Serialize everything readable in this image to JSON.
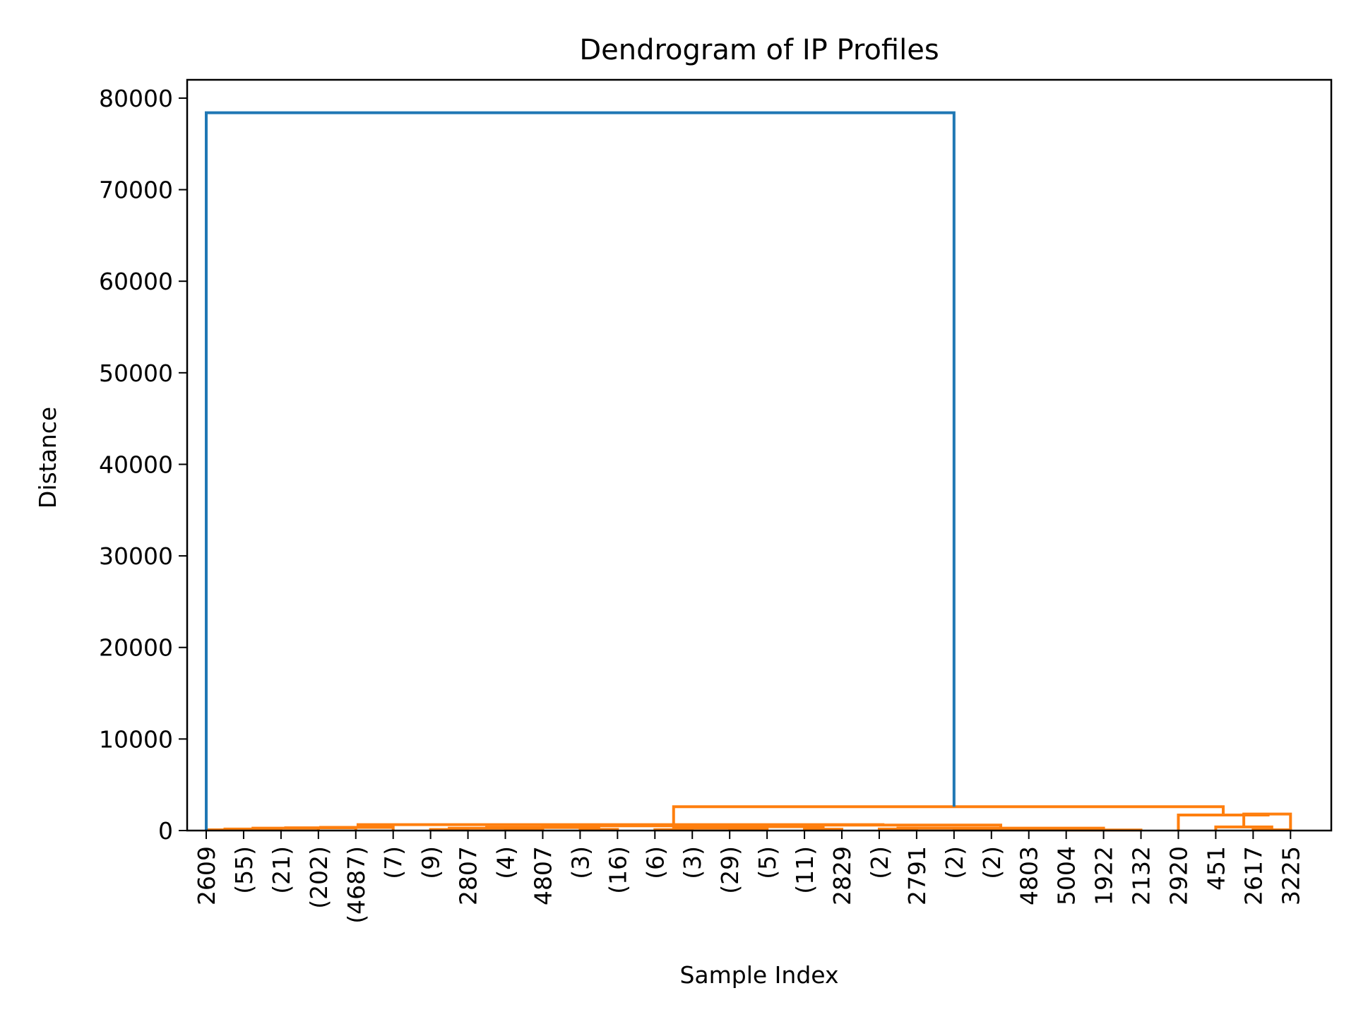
{
  "chart_data": {
    "type": "dendrogram",
    "title": "Dendrogram of IP Profiles",
    "xlabel": "Sample Index",
    "ylabel": "Distance",
    "ylim": [
      0,
      82000
    ],
    "yticks": [
      0,
      10000,
      20000,
      30000,
      40000,
      50000,
      60000,
      70000,
      80000
    ],
    "leaf_labels": [
      "2609",
      "(55)",
      "(21)",
      "(202)",
      "(4687)",
      "(7)",
      "(9)",
      "2807",
      "(4)",
      "4807",
      "(3)",
      "(16)",
      "(6)",
      "(3)",
      "(29)",
      "(5)",
      "(11)",
      "2829",
      "(2)",
      "2791",
      "(2)",
      "(2)",
      "4803",
      "5004",
      "1922",
      "2132",
      "2920",
      "451",
      "2617",
      "3225"
    ],
    "colors": {
      "top_cluster": "#1f77b4",
      "sub_cluster": "#ff7f0e"
    },
    "links": [
      {
        "color": "sub",
        "x1": 1,
        "x2": 2,
        "h1": 0,
        "h2": 0,
        "h": 80
      },
      {
        "color": "sub",
        "x1": 1.5,
        "x2": 3,
        "h1": 80,
        "h2": 0,
        "h": 160
      },
      {
        "color": "sub",
        "x1": 2.25,
        "x2": 4,
        "h1": 160,
        "h2": 0,
        "h": 260
      },
      {
        "color": "sub",
        "x1": 3.125,
        "x2": 5,
        "h1": 260,
        "h2": 0,
        "h": 300
      },
      {
        "color": "sub",
        "x1": 4.06,
        "x2": 6,
        "h1": 300,
        "h2": 0,
        "h": 350
      },
      {
        "color": "sub",
        "x1": 7,
        "x2": 8,
        "h1": 0,
        "h2": 0,
        "h": 120
      },
      {
        "color": "sub",
        "x1": 9,
        "x2": 10,
        "h1": 0,
        "h2": 0,
        "h": 150
      },
      {
        "color": "sub",
        "x1": 7.5,
        "x2": 9.5,
        "h1": 120,
        "h2": 150,
        "h": 250
      },
      {
        "color": "sub",
        "x1": 11,
        "x2": 12,
        "h1": 0,
        "h2": 0,
        "h": 130
      },
      {
        "color": "sub",
        "x1": 8.5,
        "x2": 11.5,
        "h1": 250,
        "h2": 130,
        "h": 340
      },
      {
        "color": "sub",
        "x1": 13,
        "x2": 14,
        "h1": 0,
        "h2": 0,
        "h": 100
      },
      {
        "color": "sub",
        "x1": 15,
        "x2": 16,
        "h1": 0,
        "h2": 0,
        "h": 180
      },
      {
        "color": "sub",
        "x1": 13.5,
        "x2": 15.5,
        "h1": 100,
        "h2": 180,
        "h": 260
      },
      {
        "color": "sub",
        "x1": 17,
        "x2": 18,
        "h1": 0,
        "h2": 0,
        "h": 140
      },
      {
        "color": "sub",
        "x1": 14.5,
        "x2": 17.5,
        "h1": 260,
        "h2": 140,
        "h": 420
      },
      {
        "color": "sub",
        "x1": 10,
        "x2": 16,
        "h1": 340,
        "h2": 420,
        "h": 520
      },
      {
        "color": "sub",
        "x1": 19,
        "x2": 20,
        "h1": 0,
        "h2": 0,
        "h": 160
      },
      {
        "color": "sub",
        "x1": 21,
        "x2": 22,
        "h1": 0,
        "h2": 0,
        "h": 90
      },
      {
        "color": "sub",
        "x1": 21.5,
        "x2": 23,
        "h1": 90,
        "h2": 0,
        "h": 170
      },
      {
        "color": "sub",
        "x1": 22.25,
        "x2": 24,
        "h1": 170,
        "h2": 0,
        "h": 130
      },
      {
        "color": "sub",
        "x1": 23.1,
        "x2": 25,
        "h1": 130,
        "h2": 0,
        "h": 110
      },
      {
        "color": "sub",
        "x1": 24.05,
        "x2": 26,
        "h1": 110,
        "h2": 0,
        "h": 60
      },
      {
        "color": "sub",
        "x1": 19.5,
        "x2": 25,
        "h1": 160,
        "h2": 60,
        "h": 260
      },
      {
        "color": "sub",
        "x1": 16,
        "x2": 22.25,
        "h1": 0,
        "h2": 260,
        "h": 600
      },
      {
        "color": "sub",
        "x1": 5.06,
        "x2": 19.1,
        "h1": 350,
        "h2": 600,
        "h": 650
      },
      {
        "color": "sub",
        "x1": 29,
        "x2": 30,
        "h1": 0,
        "h2": 0,
        "h": 80
      },
      {
        "color": "sub",
        "x1": 28,
        "x2": 29.5,
        "h1": 0,
        "h2": 80,
        "h": 400
      },
      {
        "color": "sub",
        "x1": 28.75,
        "x2": 30,
        "h1": 400,
        "h2": 0,
        "h": 1800
      },
      {
        "color": "sub",
        "x1": 27,
        "x2": 29.4,
        "h1": 0,
        "h2": 1800,
        "h": 1700
      },
      {
        "color": "sub",
        "x1": 13.5,
        "x2": 28.2,
        "h1": 650,
        "h2": 1700,
        "h": 2600
      },
      {
        "color": "top",
        "x1": 1,
        "x2": 21,
        "h1": 0,
        "h2": 2600,
        "h": 78400
      }
    ]
  }
}
